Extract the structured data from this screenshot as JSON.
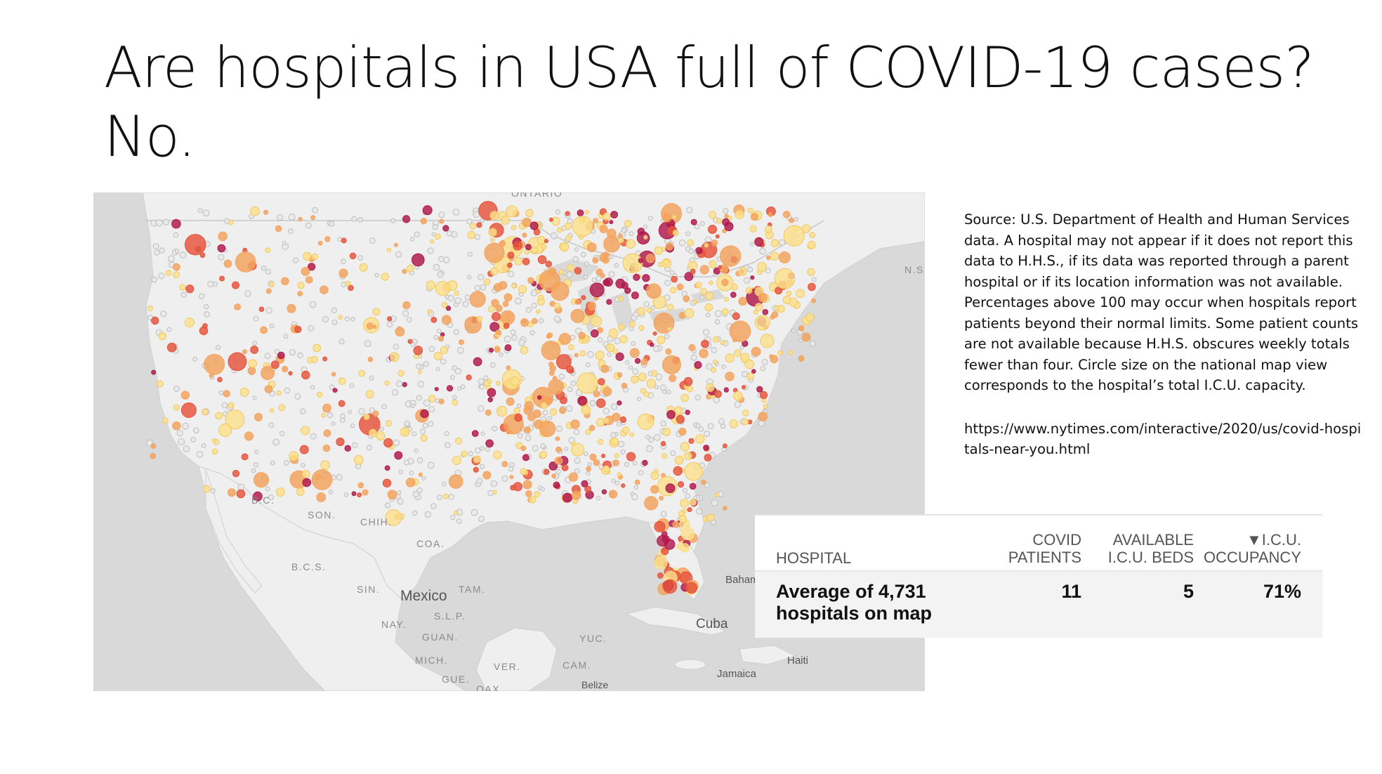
{
  "slide": {
    "title_line1": "Are hospitals in USA full of COVID-19 cases?",
    "title_line2": "No."
  },
  "source_note": {
    "text": "Source: U.S. Department of Health and Human Services data. A hospital may not appear if it does not report this data to H.H.S., if its data was reported through a parent hospital or if its location information was not available. Percentages above 100 may occur when hospitals report patients beyond their normal limits. Some patient counts are not available because H.H.S. obscures weekly totals fewer than four. Circle size on the national map view corresponds to the hospital’s total I.C.U. capacity.",
    "url": "https://www.nytimes.com/interactive/2020/us/covid-hospitals-near-you.html"
  },
  "map": {
    "labels": {
      "ontario": "ONTARIO",
      "ns": "N.S",
      "bc": "B.C.",
      "son": "SON.",
      "chih": "CHIH.",
      "coa": "COA.",
      "bcs": "B.C.S.",
      "sin": "SIN.",
      "mexico": "Mexico",
      "tam": "TAM.",
      "slp": "S.L.P.",
      "nay": "NAY.",
      "guan": "GUAN.",
      "mich": "MICH.",
      "gue": "GUE.",
      "ver": "VER.",
      "oax": "OAX.",
      "yuc": "YUC.",
      "cam": "CAM.",
      "cuba": "Cuba",
      "bahamas": "Baham",
      "haiti": "Haiti",
      "jamaica": "Jamaica",
      "belize": "Belize"
    },
    "colors": {
      "land": "#efefef",
      "water": "#d8d8d8",
      "no_data": "#bdbdbd",
      "low": "#fbe08c",
      "mid": "#f4a25c",
      "high": "#e5533a",
      "very_high": "#b0174a"
    }
  },
  "table": {
    "headers": {
      "hospital": "HOSPITAL",
      "covid_1": "COVID",
      "covid_2": "PATIENTS",
      "beds_1": "AVAILABLE",
      "beds_2": "I.C.U. BEDS",
      "occ_1": "▼I.C.U.",
      "occ_2": "OCCUPANCY"
    },
    "row": {
      "name_1": "Average of 4,731",
      "name_2": "hospitals on map",
      "covid_patients": "11",
      "available_icu_beds": "5",
      "icu_occupancy": "71%"
    }
  }
}
